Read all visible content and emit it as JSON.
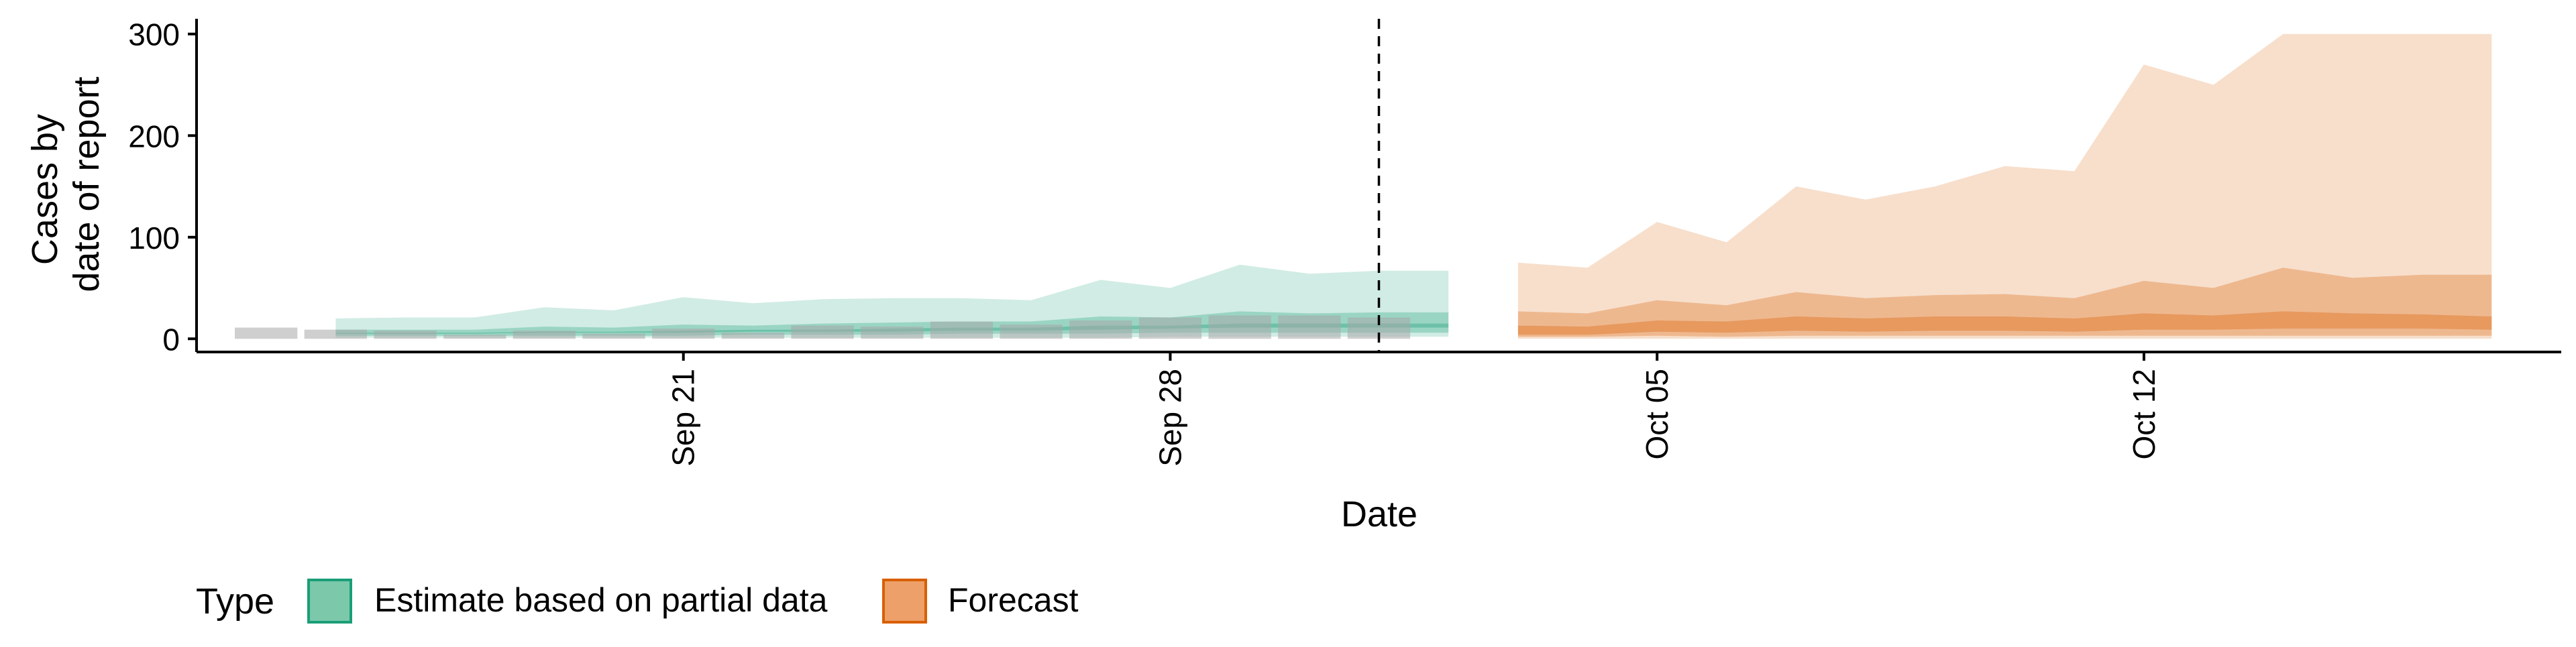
{
  "chart_data": {
    "type": "area",
    "title": "",
    "xlabel": "Date",
    "ylabel_lines": [
      "Cases by",
      "date of report"
    ],
    "y_ticks": [
      0,
      100,
      200,
      300
    ],
    "y_tick_labels": [
      "0",
      "100",
      "200",
      "300"
    ],
    "ylim": [
      -13,
      315
    ],
    "x_ticks": [
      "2020-09-21",
      "2020-09-28",
      "2020-10-05",
      "2020-10-12"
    ],
    "x_tick_labels": [
      "Sep 21",
      "Sep 28",
      "Oct 05",
      "Oct 12"
    ],
    "xlim": [
      "2020-09-14",
      "2020-10-18"
    ],
    "cutoff_date": "2020-10-01",
    "grid": false,
    "legend": {
      "title": "Type",
      "placement": "bottom-left",
      "items": [
        {
          "label": "Estimate based on partial data",
          "fill": "#7BC8AB",
          "stroke": "#1B9E77"
        },
        {
          "label": "Forecast",
          "fill": "#EDA06A",
          "stroke": "#D95F02"
        }
      ]
    },
    "colors": {
      "estimate": "#1B9E77",
      "forecast": "#D95F02",
      "observed": "#A8A8A8"
    },
    "observed_cases": {
      "x": [
        "2020-09-15",
        "2020-09-16",
        "2020-09-17",
        "2020-09-18",
        "2020-09-19",
        "2020-09-20",
        "2020-09-21",
        "2020-09-22",
        "2020-09-23",
        "2020-09-24",
        "2020-09-25",
        "2020-09-26",
        "2020-09-27",
        "2020-09-28",
        "2020-09-29",
        "2020-09-30",
        "2020-10-01"
      ],
      "y": [
        11,
        9,
        8,
        4,
        8,
        5,
        10,
        6,
        13,
        12,
        17,
        14,
        18,
        21,
        23,
        23,
        21
      ]
    },
    "series": [
      {
        "name": "Estimate based on partial data",
        "x": [
          "2020-09-16",
          "2020-09-17",
          "2020-09-18",
          "2020-09-19",
          "2020-09-20",
          "2020-09-21",
          "2020-09-22",
          "2020-09-23",
          "2020-09-24",
          "2020-09-25",
          "2020-09-26",
          "2020-09-27",
          "2020-09-28",
          "2020-09-29",
          "2020-09-30",
          "2020-10-01",
          "2020-10-02"
        ],
        "bands": [
          {
            "lower": [
              1,
              1,
              1,
              1,
              1,
              1,
              1,
              1,
              1,
              1,
              1,
              1,
              2,
              2,
              2,
              2,
              2
            ],
            "upper": [
              20,
              21,
              21,
              31,
              28,
              41,
              35,
              39,
              40,
              40,
              38,
              58,
              50,
              73,
              64,
              67,
              67
            ]
          },
          {
            "lower": [
              3,
              3,
              3,
              3,
              3,
              3,
              4,
              4,
              4,
              5,
              5,
              5,
              6,
              6,
              6,
              6,
              6
            ],
            "upper": [
              9,
              9,
              9,
              12,
              11,
              14,
              13,
              15,
              16,
              17,
              17,
              22,
              21,
              27,
              25,
              26,
              26
            ]
          },
          {
            "lower": [
              5,
              5,
              5,
              6,
              6,
              6,
              7,
              7,
              7,
              8,
              8,
              9,
              10,
              11,
              11,
              11,
              11
            ],
            "upper": [
              6,
              6,
              6,
              7,
              7,
              8,
              9,
              9,
              10,
              11,
              11,
              13,
              13,
              15,
              15,
              15,
              15
            ]
          }
        ]
      },
      {
        "name": "Forecast",
        "x": [
          "2020-10-03",
          "2020-10-04",
          "2020-10-05",
          "2020-10-06",
          "2020-10-07",
          "2020-10-08",
          "2020-10-09",
          "2020-10-10",
          "2020-10-11",
          "2020-10-12",
          "2020-10-13",
          "2020-10-14",
          "2020-10-15",
          "2020-10-16",
          "2020-10-17"
        ],
        "bands": [
          {
            "lower": [
              0,
              0,
              0,
              0,
              0,
              0,
              0,
              0,
              0,
              0,
              0,
              0,
              0,
              0,
              0
            ],
            "upper": [
              75,
              70,
              115,
              95,
              150,
              137,
              150,
              170,
              165,
              270,
              250,
              300,
              300,
              300,
              300
            ]
          },
          {
            "lower": [
              2,
              2,
              3,
              2,
              3,
              3,
              3,
              3,
              3,
              3,
              3,
              3,
              3,
              3,
              3
            ],
            "upper": [
              27,
              25,
              38,
              33,
              46,
              40,
              43,
              44,
              40,
              57,
              50,
              70,
              60,
              63,
              63
            ]
          },
          {
            "lower": [
              4,
              4,
              7,
              6,
              8,
              7,
              8,
              8,
              7,
              9,
              9,
              10,
              10,
              10,
              9
            ],
            "upper": [
              13,
              12,
              18,
              17,
              22,
              20,
              22,
              22,
              20,
              25,
              23,
              27,
              25,
              24,
              22
            ]
          }
        ]
      }
    ]
  }
}
